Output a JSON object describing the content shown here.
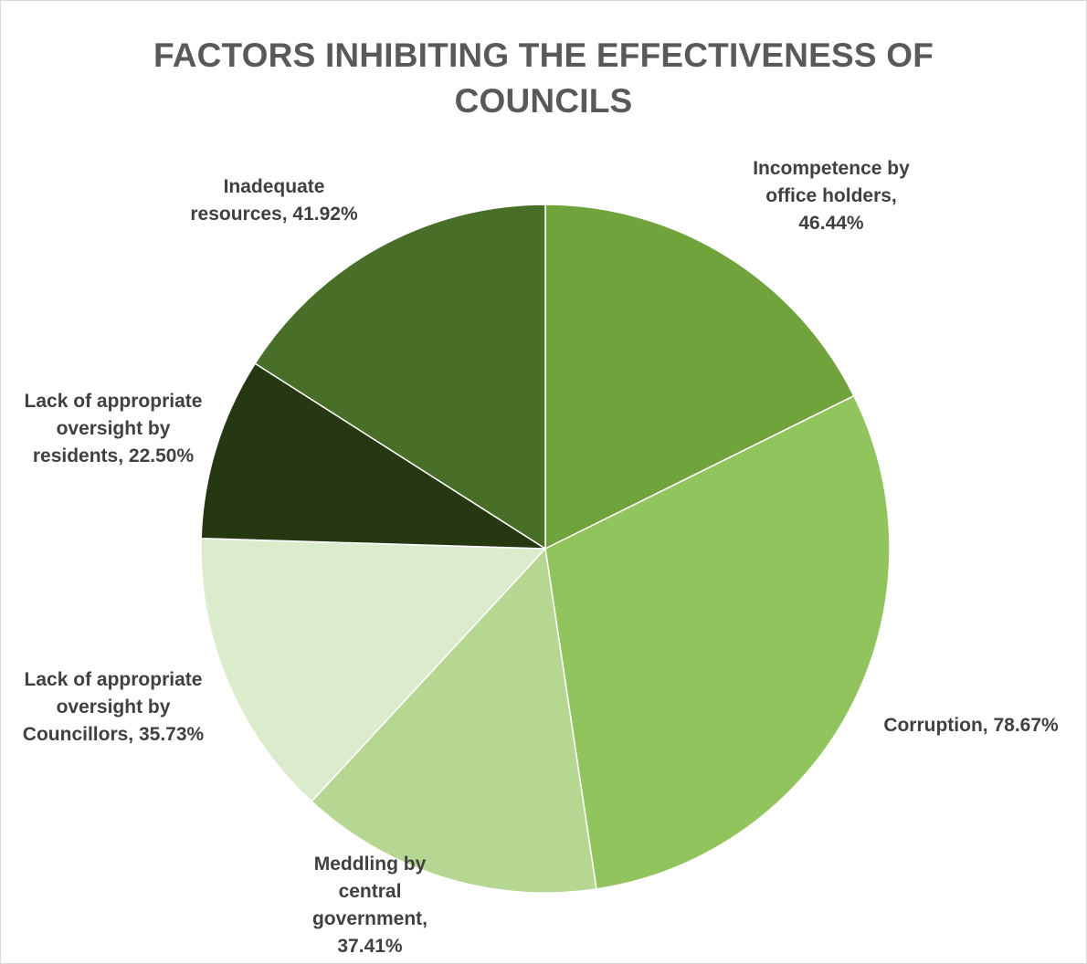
{
  "chart_data": {
    "type": "pie",
    "title": "FACTORS INHIBITING THE EFFECTIVENESS OF COUNCILS",
    "title_lines": [
      "FACTORS INHIBITING THE EFFECTIVENESS OF",
      "COUNCILS"
    ],
    "slices": [
      {
        "label": "Incompetence by office holders",
        "value": 46.44,
        "value_text": "46.44%",
        "color": "#70a33b",
        "label_lines": [
          "Incompetence by",
          "office holders,",
          "46.44%"
        ]
      },
      {
        "label": "Corruption",
        "value": 78.67,
        "value_text": "78.67%",
        "color": "#92c45d",
        "label_lines": [
          "Corruption, 78.67%"
        ]
      },
      {
        "label": "Meddling by central government",
        "value": 37.41,
        "value_text": "37.41%",
        "color": "#b5d792",
        "label_lines": [
          "Meddling by",
          "central",
          "government,",
          "37.41%"
        ]
      },
      {
        "label": "Lack of appropriate oversight by Councillors",
        "value": 35.73,
        "value_text": "35.73%",
        "color": "#dcebcc",
        "label_lines": [
          "Lack of appropriate",
          "oversight by",
          "Councillors, 35.73%"
        ]
      },
      {
        "label": "Lack of appropriate oversight by residents",
        "value": 22.5,
        "value_text": "22.50%",
        "color": "#263812",
        "label_lines": [
          "Lack of appropriate",
          "oversight by",
          "residents, 22.50%"
        ]
      },
      {
        "label": "Inadequate resources",
        "value": 41.92,
        "value_text": "41.92%",
        "color": "#496e27",
        "label_lines": [
          "Inadequate",
          "resources, 41.92%"
        ]
      }
    ]
  }
}
